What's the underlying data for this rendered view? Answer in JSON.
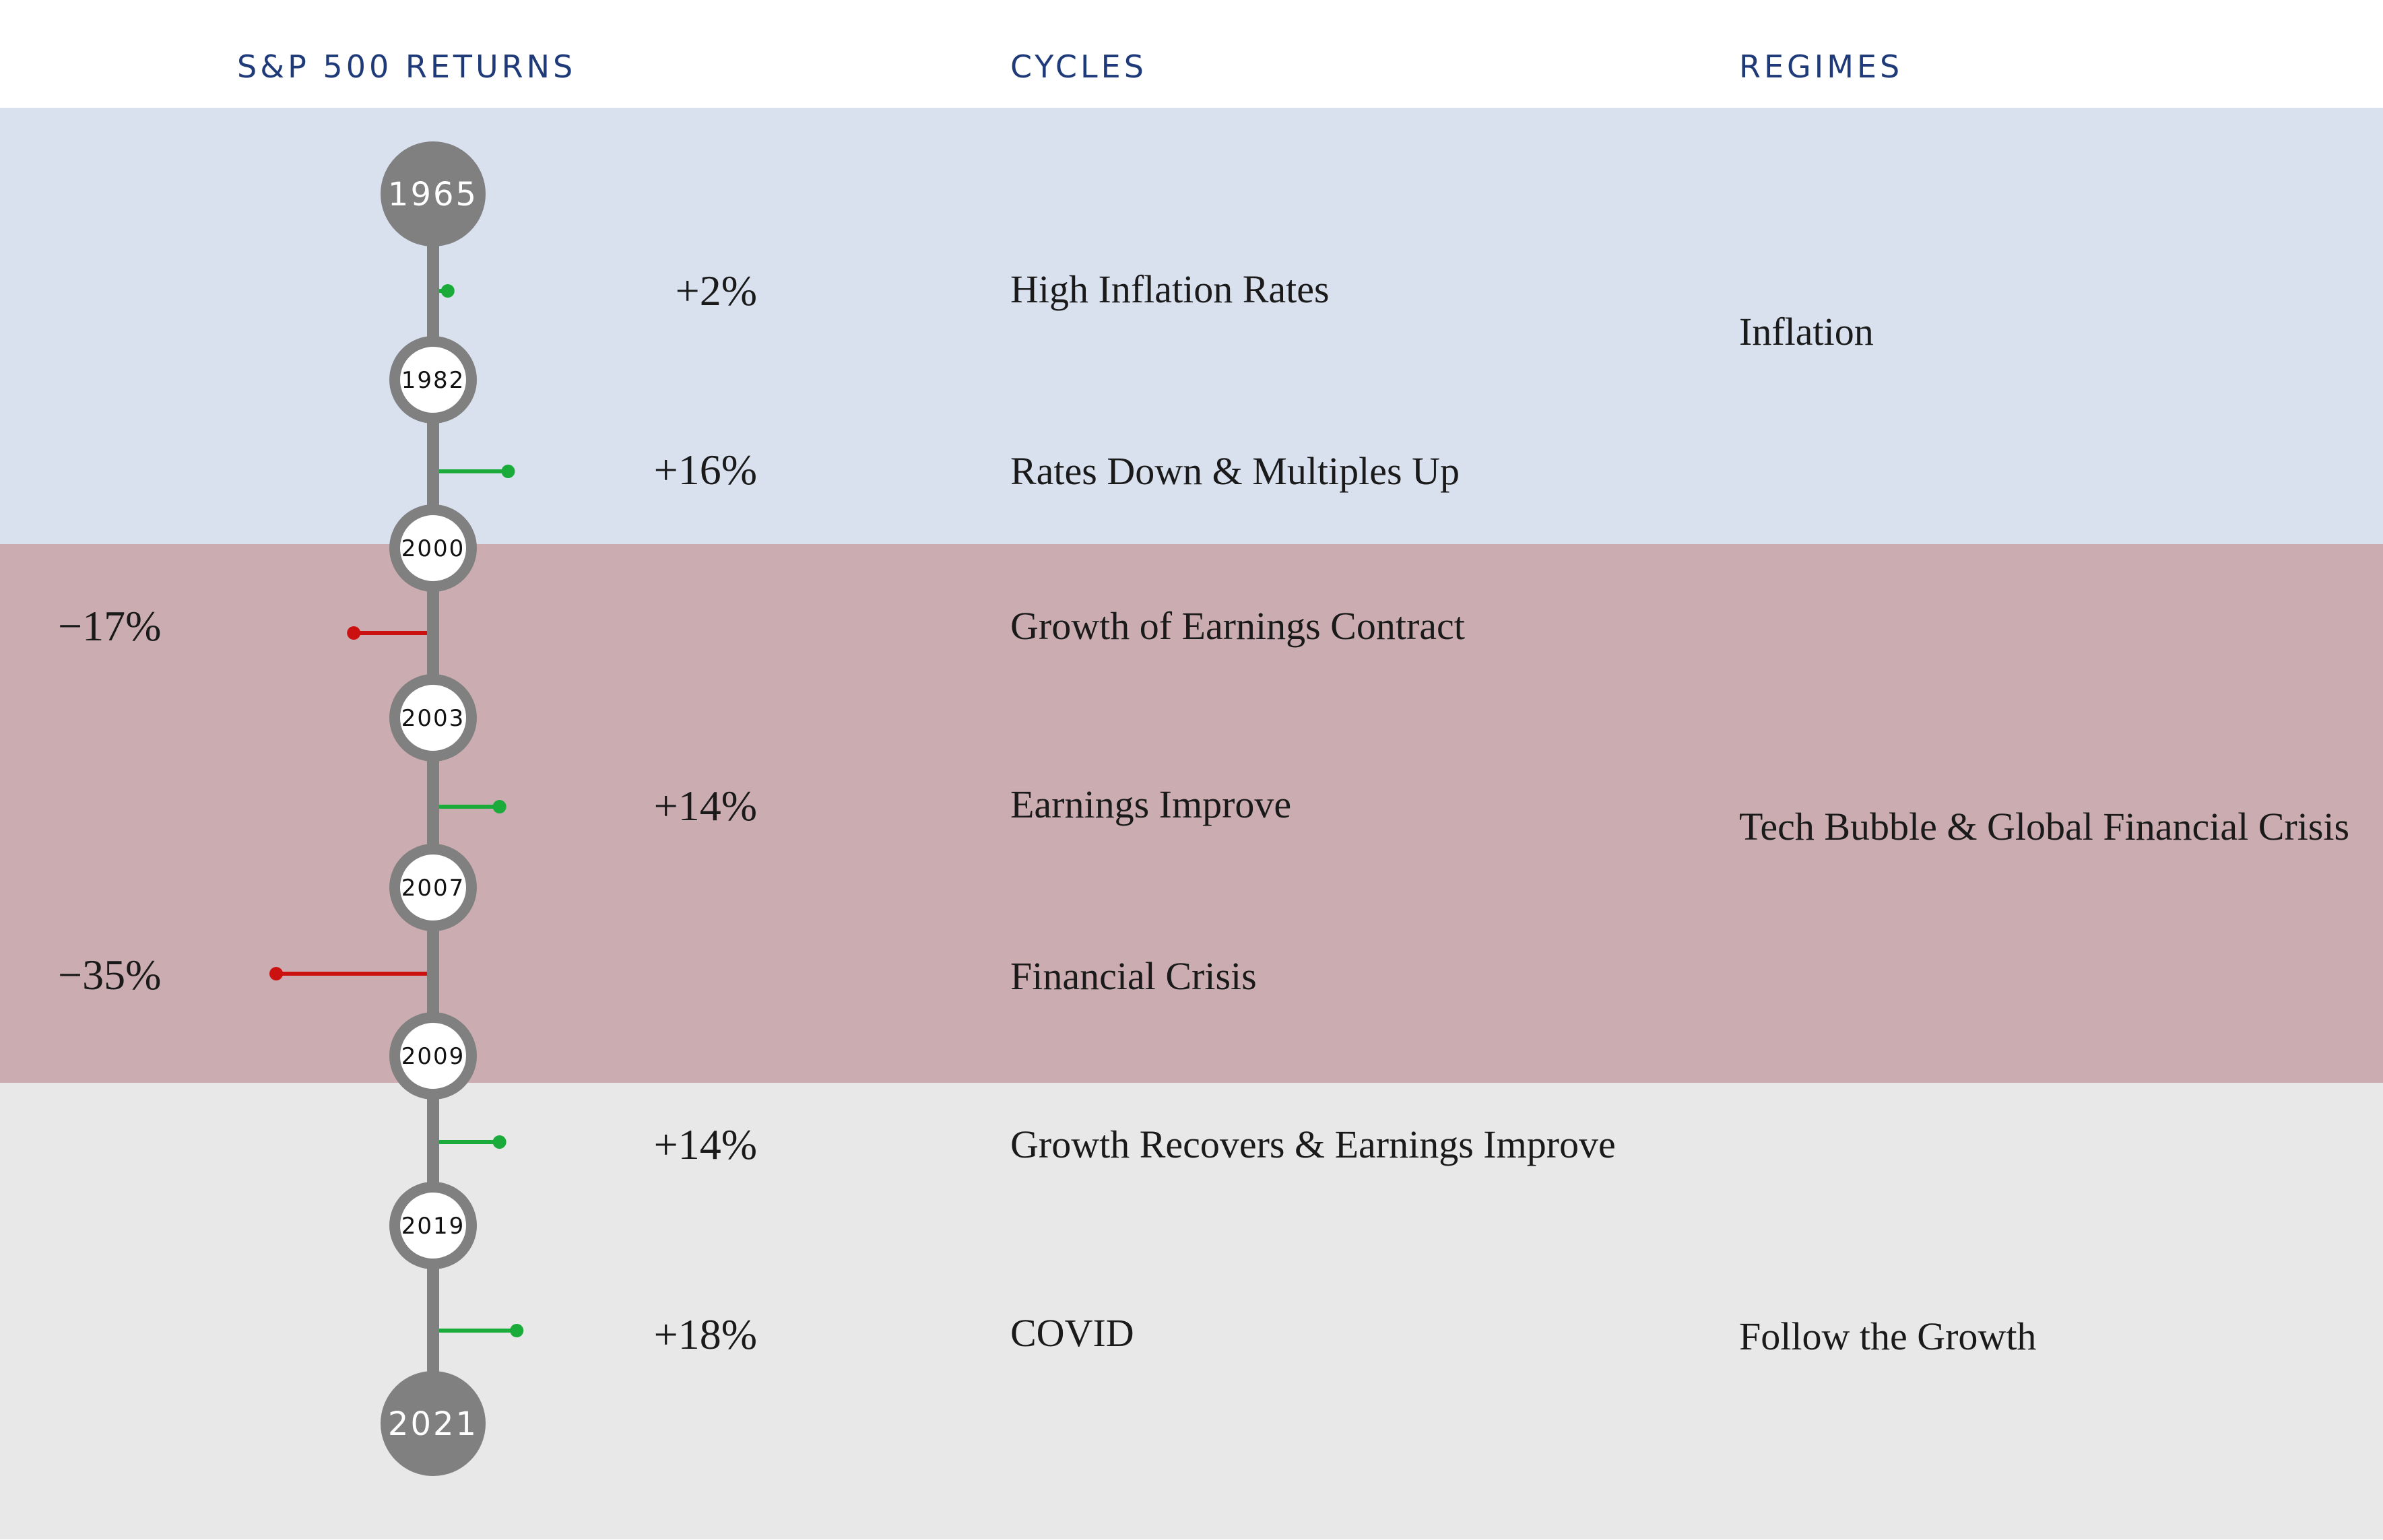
{
  "headers": {
    "returns": "S&P 500 RETURNS",
    "cycles": "CYCLES",
    "regimes": "REGIMES"
  },
  "colors": {
    "header_text": "#1f3a78",
    "inflation_band": "#d9e1ef",
    "crisis_band": "#cbadb1",
    "growth_band": "#e8e8e8",
    "timeline": "#808080",
    "positive": "#1aab3a",
    "negative": "#cc1111"
  },
  "years": [
    "1965",
    "1982",
    "2000",
    "2003",
    "2007",
    "2009",
    "2019",
    "2021"
  ],
  "periods": [
    {
      "return_label": "+2%",
      "return_value": 2,
      "cycle": "High Inflation Rates"
    },
    {
      "return_label": "+16%",
      "return_value": 16,
      "cycle": "Rates Down & Multiples Up"
    },
    {
      "return_label": "−17%",
      "return_value": -17,
      "cycle": "Growth of Earnings Contract"
    },
    {
      "return_label": "+14%",
      "return_value": 14,
      "cycle": "Earnings Improve"
    },
    {
      "return_label": "−35%",
      "return_value": -35,
      "cycle": "Financial Crisis"
    },
    {
      "return_label": "+14%",
      "return_value": 14,
      "cycle": "Growth Recovers & Earnings Improve"
    },
    {
      "return_label": "+18%",
      "return_value": 18,
      "cycle": "COVID"
    }
  ],
  "regimes": [
    {
      "label": "Inflation"
    },
    {
      "label": "Tech Bubble & Global Financial Crisis"
    },
    {
      "label": "Follow the Growth"
    }
  ]
}
